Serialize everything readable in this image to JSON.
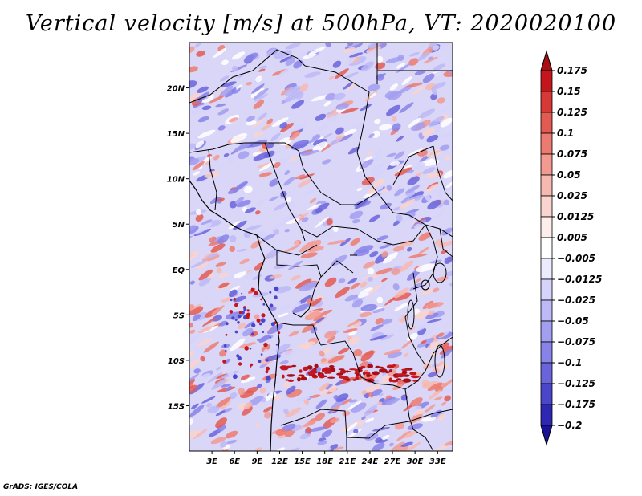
{
  "title": "Vertical velocity [m/s] at 500hPa, VT: 2020020100",
  "credit": "GrADS: IGES/COLA",
  "map": {
    "region": "Central Africa",
    "lat_range": [
      -20,
      25
    ],
    "lon_range": [
      0,
      35
    ],
    "lat_ticks": [
      {
        "value": 20,
        "label": "20N"
      },
      {
        "value": 15,
        "label": "15N"
      },
      {
        "value": 10,
        "label": "10N"
      },
      {
        "value": 5,
        "label": "5N"
      },
      {
        "value": 0,
        "label": "EQ"
      },
      {
        "value": -5,
        "label": "5S"
      },
      {
        "value": -10,
        "label": "10S"
      },
      {
        "value": -15,
        "label": "15S"
      }
    ],
    "lon_ticks": [
      {
        "value": 3,
        "label": "3E"
      },
      {
        "value": 6,
        "label": "6E"
      },
      {
        "value": 9,
        "label": "9E"
      },
      {
        "value": 12,
        "label": "12E"
      },
      {
        "value": 15,
        "label": "15E"
      },
      {
        "value": 18,
        "label": "18E"
      },
      {
        "value": 21,
        "label": "21E"
      },
      {
        "value": 24,
        "label": "24E"
      },
      {
        "value": 27,
        "label": "27E"
      },
      {
        "value": 30,
        "label": "30E"
      },
      {
        "value": 33,
        "label": "33E"
      }
    ]
  },
  "colorbar": {
    "labels": [
      "0.175",
      "0.15",
      "0.125",
      "0.1",
      "0.075",
      "0.05",
      "0.025",
      "0.0125",
      "0.005",
      "−0.005",
      "−0.0125",
      "−0.025",
      "−0.05",
      "−0.075",
      "−0.1",
      "−0.125",
      "−0.175",
      "−0.2"
    ],
    "colors": [
      "#a50f15",
      "#c4161c",
      "#d73a36",
      "#e35a52",
      "#ec7a70",
      "#f29a90",
      "#f6b8b0",
      "#fad4ce",
      "#fdeeeb",
      "#ffffff",
      "#ecebff",
      "#d6d4fb",
      "#bcb9f6",
      "#a29ef0",
      "#8783e8",
      "#6964dc",
      "#4b45cc",
      "#2e27b4",
      "#1a1296"
    ]
  }
}
